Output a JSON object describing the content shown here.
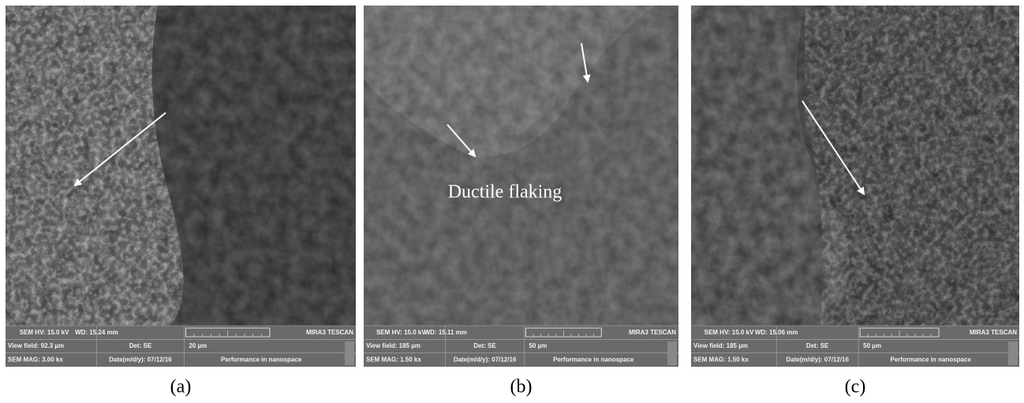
{
  "panels": [
    {
      "caption": "(a)",
      "info": {
        "hv": "SEM HV: 15.0 kV",
        "wd": "WD: 15.24 mm",
        "brand": "MIRA3 TESCAN",
        "view_field": "View field: 92.3 µm",
        "det": "Det: SE",
        "scale": "20 µm",
        "mag": "SEM MAG: 3.00 kx",
        "date": "Date(m/d/y): 07/12/16",
        "slogan": "Performance in nanospace"
      }
    },
    {
      "caption": "(b)",
      "annotation": "Ductile flaking",
      "info": {
        "hv": "SEM HV: 15.0 kV",
        "wd": "WD: 15.11 mm",
        "brand": "MIRA3 TESCAN",
        "view_field": "View field: 185 µm",
        "det": "Det: SE",
        "scale": "50 µm",
        "mag": "SEM MAG: 1.50 kx",
        "date": "Date(m/d/y): 07/12/16",
        "slogan": "Performance in nanospace"
      }
    },
    {
      "caption": "(c)",
      "info": {
        "hv": "SEM HV: 15.0 kV",
        "wd": "WD: 15.06 mm",
        "brand": "MIRA3 TESCAN",
        "view_field": "View field: 185 µm",
        "det": "Det: SE",
        "scale": "50 µm",
        "mag": "SEM MAG: 1.50 kx",
        "date": "Date(m/d/y): 07/12/16",
        "slogan": "Performance in nanospace"
      }
    }
  ]
}
